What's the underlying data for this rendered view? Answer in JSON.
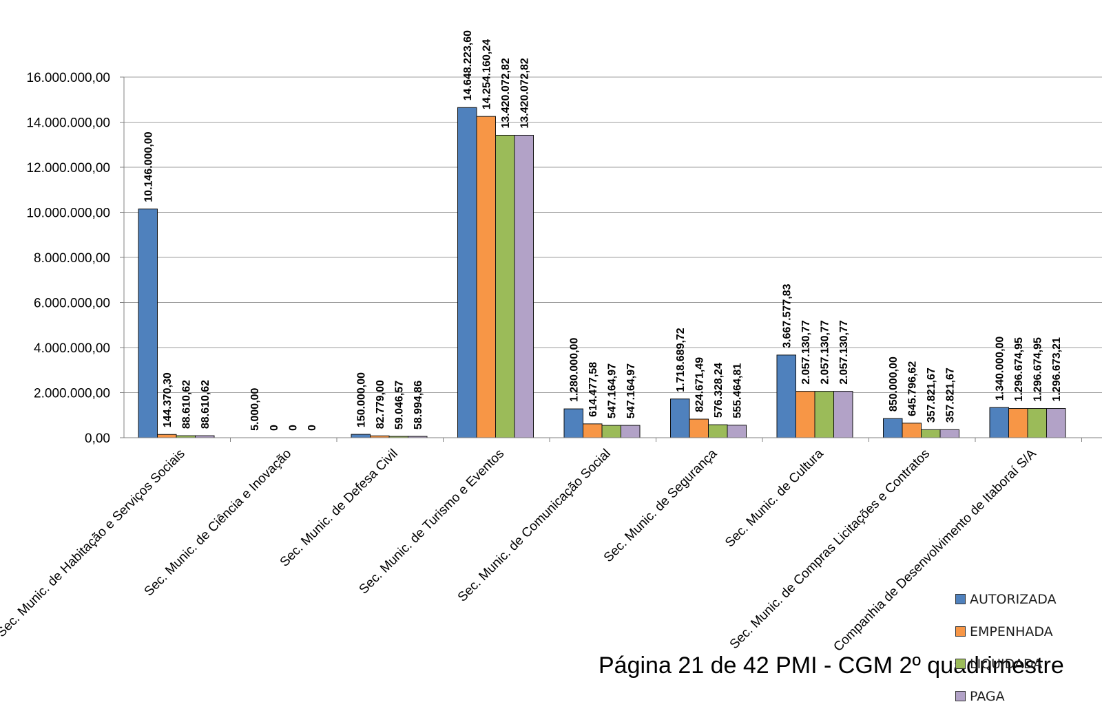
{
  "chart_data": {
    "type": "bar",
    "categories": [
      "Sec. Munic. de Habitação e Serviços Sociais",
      "Sec. Munic. de Ciência e Inovação",
      "Sec. Munic. de Defesa Civil",
      "Sec. Munic. de Turismo e Eventos",
      "Sec. Munic. de Comunicação Social",
      "Sec. Munic. de Segurança",
      "Sec. Munic. de Cultura",
      "Sec. Munic. de Compras Licitações e Contratos",
      "Companhia de Desenvolvimento de Itaboraí S/A"
    ],
    "series": [
      {
        "name": "AUTORIZADA",
        "color": "#4f81bd",
        "values": [
          10146000.0,
          5000.0,
          150000.0,
          14648223.6,
          1280000.0,
          1718689.72,
          3667577.83,
          850000.0,
          1340000.0
        ],
        "labels": [
          "10.146.000,00",
          "5.000,00",
          "150.000,00",
          "14.648.223,60",
          "1.280.000,00",
          "1.718.689,72",
          "3.667.577,83",
          "850.000,00",
          "1.340.000,00"
        ]
      },
      {
        "name": "EMPENHADA",
        "color": "#f79646",
        "values": [
          144370.3,
          0,
          82779.0,
          14254160.24,
          614477.58,
          824671.49,
          2057130.77,
          645796.62,
          1296674.95
        ],
        "labels": [
          "144.370,30",
          "0",
          "82.779,00",
          "14.254.160,24",
          "614.477,58",
          "824.671,49",
          "2.057.130,77",
          "645.796,62",
          "1.296.674,95"
        ]
      },
      {
        "name": "LIQUIDADA",
        "color": "#9bbb59",
        "values": [
          88610.62,
          0,
          59046.57,
          13420072.82,
          547164.97,
          576328.24,
          2057130.77,
          357821.67,
          1296674.95
        ],
        "labels": [
          "88.610,62",
          "0",
          "59.046,57",
          "13.420.072,82",
          "547.164,97",
          "576.328,24",
          "2.057.130,77",
          "357.821,67",
          "1.296.674,95"
        ]
      },
      {
        "name": "PAGA",
        "color": "#b2a2c7",
        "values": [
          88610.62,
          0,
          58994.86,
          13420072.82,
          547164.97,
          555464.81,
          2057130.77,
          357821.67,
          1296673.21
        ],
        "labels": [
          "88.610,62",
          "0",
          "58.994,86",
          "13.420.072,82",
          "547.164,97",
          "555.464,81",
          "2.057.130,77",
          "357.821,67",
          "1.296.673,21"
        ]
      }
    ],
    "yticks": [
      "0,00",
      "2.000.000,00",
      "4.000.000,00",
      "6.000.000,00",
      "8.000.000,00",
      "10.000.000,00",
      "12.000.000,00",
      "14.000.000,00",
      "16.000.000,00"
    ],
    "ylim": [
      0,
      16000000
    ],
    "grid": true,
    "legend_position": "bottom-right"
  },
  "legend": [
    "AUTORIZADA",
    "EMPENHADA",
    "LIQUIDADA",
    "PAGA"
  ],
  "footer": "Página 21 de 42 PMI - CGM 2º quadrimestre"
}
